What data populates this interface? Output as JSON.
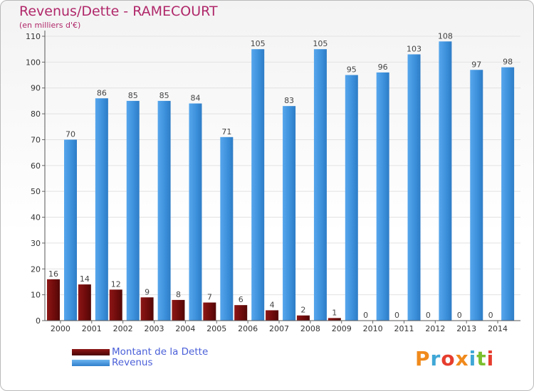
{
  "header": {
    "title": "Revenus/Dette - RAMECOURT",
    "subtitle": "(en milliers d'€)"
  },
  "chart_data": {
    "type": "bar",
    "title": "Revenus/Dette - RAMECOURT",
    "ylabel": "(en milliers d'€)",
    "xlabel": "",
    "categories": [
      "2000",
      "2001",
      "2002",
      "2003",
      "2004",
      "2005",
      "2006",
      "2007",
      "2008",
      "2009",
      "2010",
      "2011",
      "2012",
      "2013",
      "2014"
    ],
    "series": [
      {
        "name": "Montant de la Dette",
        "color": "#7b0d0d",
        "values": [
          16,
          14,
          12,
          9,
          8,
          7,
          6,
          4,
          2,
          1,
          0,
          0,
          0,
          0,
          0
        ]
      },
      {
        "name": "Revenus",
        "color": "#3f93dc",
        "values": [
          70,
          86,
          85,
          85,
          84,
          71,
          105,
          83,
          105,
          95,
          96,
          103,
          108,
          97,
          98
        ]
      }
    ],
    "yticks": [
      0,
      10,
      20,
      30,
      40,
      50,
      60,
      70,
      80,
      90,
      100,
      110
    ],
    "ylim": [
      0,
      110
    ],
    "grid": true,
    "legend_position": "bottom-left"
  },
  "legend": {
    "items": [
      {
        "label": "Montant de la Dette",
        "color": "#7b0d0d"
      },
      {
        "label": "Revenus",
        "color": "#3f93dc"
      }
    ]
  },
  "logo": {
    "text": "Proxiti"
  }
}
